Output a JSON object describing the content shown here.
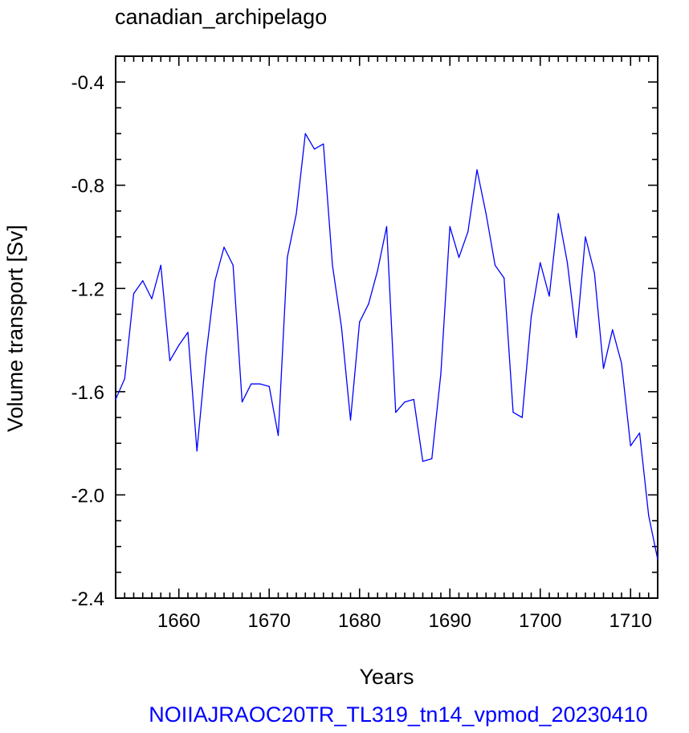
{
  "chart_data": {
    "type": "line",
    "title": "canadian_archipelago",
    "xlabel": "Years",
    "ylabel": "Volume transport [Sv]",
    "xlim": [
      1653,
      1713
    ],
    "ylim": [
      -2.4,
      -0.3
    ],
    "x_ticks": [
      1660,
      1670,
      1680,
      1690,
      1700,
      1710
    ],
    "x_tick_labels": [
      "1660",
      "1670",
      "1680",
      "1690",
      "1700",
      "1710"
    ],
    "y_ticks": [
      -0.4,
      -0.8,
      -1.2,
      -1.6,
      -2.0,
      -2.4
    ],
    "y_tick_labels": [
      "-0.4",
      "-0.8",
      "-1.2",
      "-1.6",
      "-2.0",
      "-2.4"
    ],
    "grid": false,
    "series": [
      {
        "color": "#0000ff",
        "x": [
          1653,
          1654,
          1655,
          1656,
          1657,
          1658,
          1659,
          1660,
          1661,
          1662,
          1663,
          1664,
          1665,
          1666,
          1667,
          1668,
          1669,
          1670,
          1671,
          1672,
          1673,
          1674,
          1675,
          1676,
          1677,
          1678,
          1679,
          1680,
          1681,
          1682,
          1683,
          1684,
          1685,
          1686,
          1687,
          1688,
          1689,
          1690,
          1691,
          1692,
          1693,
          1694,
          1695,
          1696,
          1697,
          1698,
          1699,
          1700,
          1701,
          1702,
          1703,
          1704,
          1705,
          1706,
          1707,
          1708,
          1709,
          1710,
          1711,
          1712,
          1713
        ],
        "values": [
          -1.63,
          -1.55,
          -1.22,
          -1.17,
          -1.24,
          -1.11,
          -1.48,
          -1.42,
          -1.37,
          -1.83,
          -1.46,
          -1.17,
          -1.04,
          -1.11,
          -1.64,
          -1.57,
          -1.57,
          -1.58,
          -1.77,
          -1.08,
          -0.91,
          -0.6,
          -0.66,
          -0.64,
          -1.11,
          -1.35,
          -1.71,
          -1.33,
          -1.26,
          -1.13,
          -0.96,
          -1.68,
          -1.64,
          -1.63,
          -1.87,
          -1.86,
          -1.53,
          -0.96,
          -1.08,
          -0.98,
          -0.74,
          -0.91,
          -1.11,
          -1.16,
          -1.68,
          -1.7,
          -1.31,
          -1.1,
          -1.23,
          -0.91,
          -1.1,
          -1.39,
          -1.0,
          -1.14,
          -1.51,
          -1.36,
          -1.49,
          -1.81,
          -1.76,
          -2.08,
          -2.25
        ]
      }
    ]
  },
  "footer": {
    "text": "NOIIAJRAOC20TR_TL319_tn14_vpmod_20230410",
    "color": "#0000ff"
  }
}
